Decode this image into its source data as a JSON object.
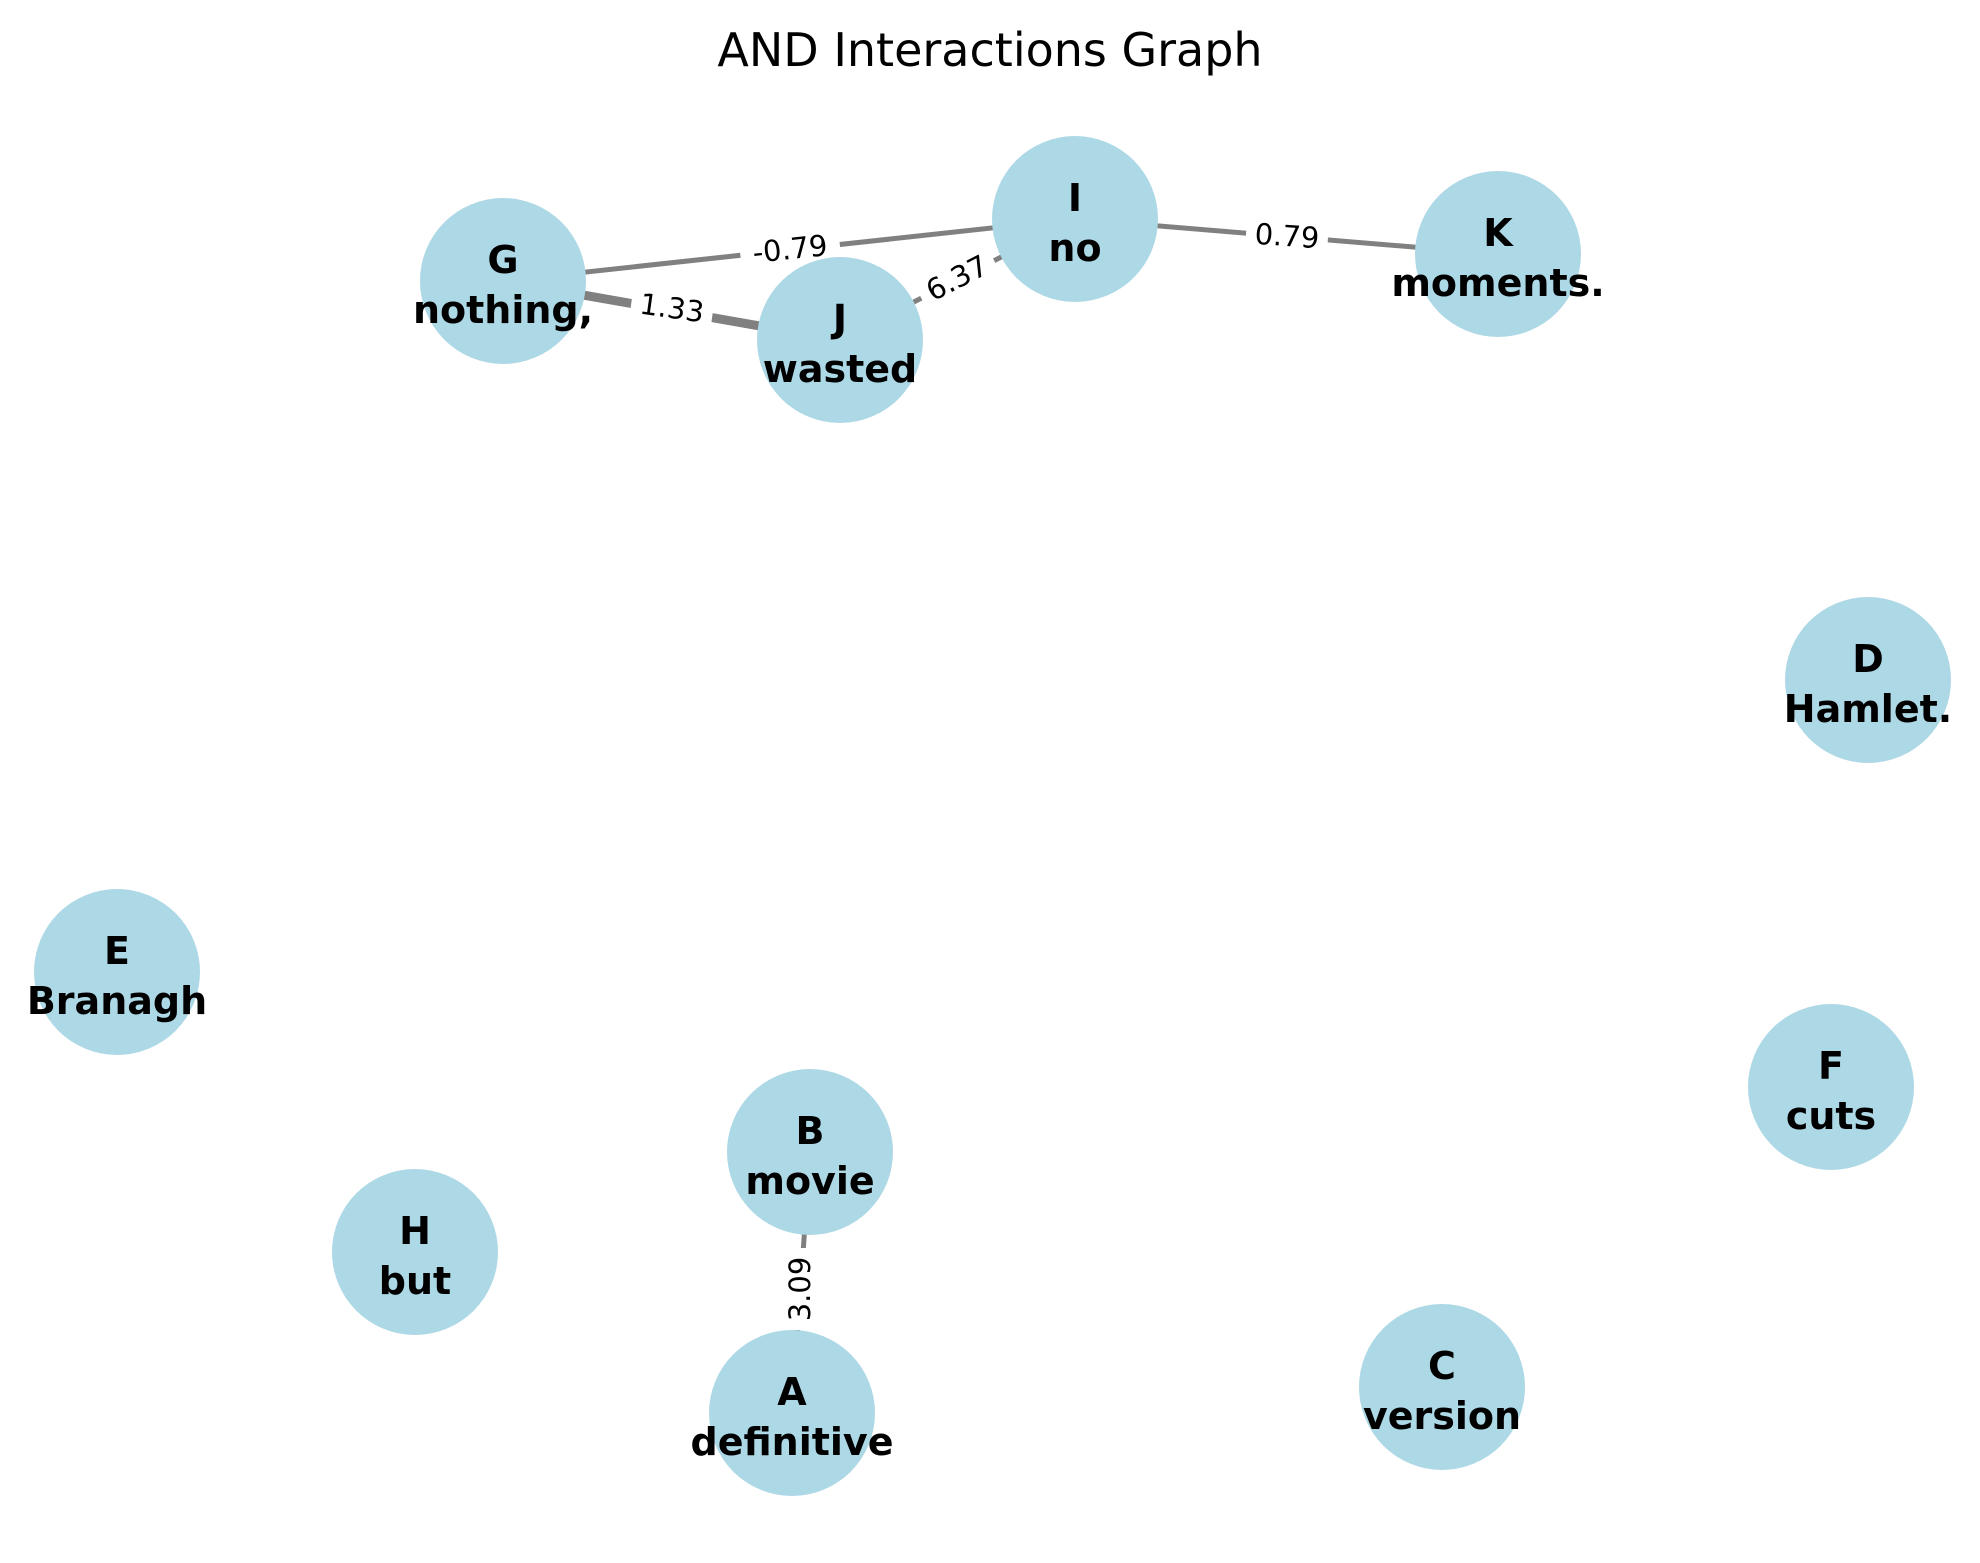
{
  "title": "AND Interactions Graph",
  "colors": {
    "node_fill": "#add8e6",
    "edge": "#808080",
    "text": "#000000",
    "background": "#ffffff"
  },
  "nodes": [
    {
      "id": "A",
      "word": "definitive"
    },
    {
      "id": "B",
      "word": "movie"
    },
    {
      "id": "C",
      "word": "version"
    },
    {
      "id": "D",
      "word": "Hamlet."
    },
    {
      "id": "E",
      "word": "Branagh"
    },
    {
      "id": "F",
      "word": "cuts"
    },
    {
      "id": "G",
      "word": "nothing,"
    },
    {
      "id": "H",
      "word": "but"
    },
    {
      "id": "I",
      "word": "no"
    },
    {
      "id": "J",
      "word": "wasted"
    },
    {
      "id": "K",
      "word": "moments."
    }
  ],
  "edges": [
    {
      "source": "G",
      "target": "I",
      "weight": "-0.79"
    },
    {
      "source": "G",
      "target": "J",
      "weight": "1.33"
    },
    {
      "source": "J",
      "target": "I",
      "weight": "6.37"
    },
    {
      "source": "I",
      "target": "K",
      "weight": "0.79"
    },
    {
      "source": "A",
      "target": "B",
      "weight": "3.09"
    }
  ]
}
